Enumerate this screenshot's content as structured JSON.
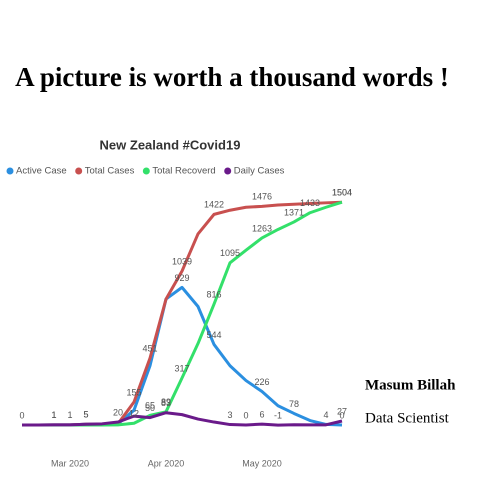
{
  "header": {
    "title": "A picture is worth a thousand words !"
  },
  "author": {
    "name": "Masum Billah",
    "role": "Data Scientist"
  },
  "chart_data": {
    "type": "line",
    "title": "New Zealand #Covid19",
    "categories": [
      null,
      null,
      null,
      "Mar 2020",
      null,
      null,
      null,
      null,
      null,
      "Apr 2020",
      null,
      null,
      null,
      null,
      null,
      "May 2020",
      null,
      null,
      null,
      null,
      null
    ],
    "ylim": [
      0,
      1600
    ],
    "series": [
      {
        "name": "Active Case",
        "color": "#2b8fe0",
        "values": [
          0,
          0,
          1,
          1,
          5,
          5,
          8,
          100,
          400,
          850,
          929,
          800,
          544,
          400,
          300,
          226,
          130,
          78,
          30,
          4,
          0
        ],
        "value_labels": [
          null,
          null,
          null,
          null,
          null,
          null,
          null,
          null,
          null,
          null,
          "929",
          null,
          "544",
          null,
          null,
          "226",
          null,
          "78",
          null,
          "4",
          "0"
        ]
      },
      {
        "name": "Total Cases",
        "color": "#c8504f",
        "values": [
          0,
          0,
          1,
          1,
          5,
          5,
          8,
          155,
          451,
          850,
          1039,
          1290,
          1422,
          1450,
          1470,
          1476,
          1485,
          1490,
          1495,
          1500,
          1504
        ],
        "value_labels": [
          "0",
          null,
          "1",
          null,
          "5",
          null,
          null,
          "155",
          "451",
          null,
          "1039",
          null,
          "1422",
          null,
          null,
          "1476",
          null,
          null,
          null,
          null,
          "1504"
        ]
      },
      {
        "name": "Total Recoverd",
        "color": "#33e06a",
        "values": [
          0,
          0,
          0,
          0,
          0,
          0,
          1,
          12,
          65,
          89,
          317,
          550,
          816,
          1095,
          1180,
          1263,
          1320,
          1371,
          1433,
          1470,
          1504
        ],
        "value_labels": [
          null,
          null,
          null,
          null,
          null,
          null,
          null,
          "12",
          "65",
          "89",
          "317",
          null,
          "816",
          "1095",
          null,
          "1263",
          null,
          "1371",
          "1433",
          null,
          "1504"
        ]
      },
      {
        "name": "Daily Cases",
        "color": "#6a1a8a",
        "values": [
          0,
          0,
          1,
          1,
          5,
          8,
          20,
          60,
          50,
          83,
          70,
          40,
          20,
          3,
          0,
          6,
          -1,
          2,
          1,
          1,
          27
        ],
        "value_labels": [
          null,
          null,
          "1",
          "1",
          "5",
          null,
          "20",
          null,
          "50",
          "83",
          null,
          null,
          null,
          "3",
          "0",
          "6",
          "-1",
          null,
          null,
          null,
          "27"
        ]
      }
    ]
  }
}
